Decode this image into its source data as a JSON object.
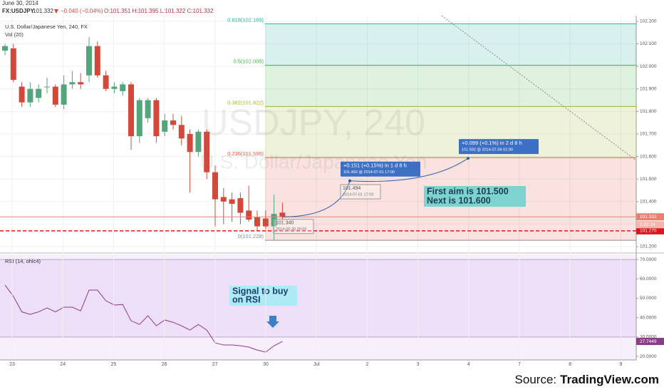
{
  "header": {
    "date": "June 30, 2014",
    "symbol": "FX:USDJPY",
    "last": "101.332",
    "change": "−0.040 (−0.04%)",
    "ohlc": "O:101.351 H:101.395 L:101.322 C:101.332"
  },
  "chart_data": [
    {
      "type": "candlestick",
      "title": "U.S. Dollar/Japanese Yen, 240, FX",
      "subtitle": "Vol (20)",
      "watermark": "USDJPY, 240",
      "watermark_subtitle": "U.S. Dollar/Japanese Yen",
      "xticks": [
        "23",
        "24",
        "25",
        "26",
        "27",
        "30",
        "Jul",
        "2",
        "3",
        "4",
        "7",
        "8",
        "9"
      ],
      "open": [
        102.07,
        102.08,
        101.91,
        101.84,
        101.86,
        101.91,
        101.91,
        101.83,
        101.92,
        101.93,
        101.96,
        102.09,
        101.96,
        101.9,
        101.89,
        101.92,
        101.69,
        101.77,
        101.85,
        101.71,
        101.76,
        101.74,
        101.7,
        101.62,
        101.71,
        101.53,
        101.42,
        101.41,
        101.415,
        101.36,
        101.33,
        101.325,
        101.29,
        101.351
      ],
      "high": [
        102.1,
        102.1,
        101.93,
        101.93,
        101.92,
        101.95,
        101.92,
        101.96,
        101.98,
        101.97,
        102.13,
        102.11,
        101.98,
        101.93,
        101.93,
        101.93,
        101.86,
        101.86,
        101.86,
        101.79,
        101.79,
        101.78,
        101.72,
        101.72,
        101.72,
        101.56,
        101.46,
        101.44,
        101.44,
        101.47,
        101.36,
        101.36,
        101.43,
        101.395
      ],
      "low": [
        102.05,
        101.93,
        101.82,
        101.82,
        101.84,
        101.88,
        101.82,
        101.81,
        101.9,
        101.9,
        101.93,
        101.95,
        101.89,
        101.88,
        101.87,
        101.63,
        101.66,
        101.75,
        101.66,
        101.69,
        101.72,
        101.65,
        101.44,
        101.6,
        101.5,
        101.29,
        101.3,
        101.31,
        101.3,
        101.31,
        101.27,
        101.28,
        101.23,
        101.322
      ],
      "close": [
        102.09,
        101.94,
        101.84,
        101.9,
        101.9,
        101.91,
        101.83,
        101.92,
        101.93,
        101.92,
        102.09,
        101.96,
        101.9,
        101.91,
        101.92,
        101.69,
        101.85,
        101.85,
        101.69,
        101.76,
        101.74,
        101.68,
        101.62,
        101.71,
        101.53,
        101.41,
        101.4,
        101.39,
        101.35,
        101.32,
        101.29,
        101.29,
        101.345,
        101.332
      ],
      "up_color": "#53a57c",
      "down_color": "#d2493c",
      "ylim": [
        101.181,
        102.225
      ],
      "yticks": [
        {
          "value": 102.2,
          "label": "102.200"
        },
        {
          "value": 102.1,
          "label": "102.100"
        },
        {
          "value": 102.0,
          "label": "102.000"
        },
        {
          "value": 101.9,
          "label": "101.900"
        },
        {
          "value": 101.8,
          "label": "101.800"
        },
        {
          "value": 101.7,
          "label": "101.700"
        },
        {
          "value": 101.6,
          "label": "101.600"
        },
        {
          "value": 101.5,
          "label": "101.500"
        },
        {
          "value": 101.4,
          "label": "101.400"
        },
        {
          "value": 101.3,
          "label": "101.300"
        },
        {
          "value": 101.2,
          "label": "101.200"
        }
      ],
      "fib_levels": [
        {
          "value": 102.189,
          "label": "0.618(102.189)",
          "color": "#2bb3a0"
        },
        {
          "value": 102.005,
          "label": "0.5(102.005)",
          "color": "#4caf50"
        },
        {
          "value": 101.822,
          "label": "0.382(101.822)",
          "color": "#9fb53a"
        },
        {
          "value": 101.595,
          "label": "0.236(101.595)",
          "color": "#e05e4f"
        },
        {
          "value": 101.228,
          "label": "0(101.228)",
          "color": "#8a8a8a"
        }
      ],
      "price_lines": [
        {
          "value": 101.332,
          "label": "101.332",
          "color": "#e8806f",
          "dashed": false
        },
        {
          "value": 101.27,
          "label": "101.270",
          "color": "#e0141e",
          "dashed": true
        }
      ],
      "countdown": "1:32:24",
      "projections": [
        {
          "value": 101.492,
          "text": "+0.151 (+0.15%) in 1 d 8 h",
          "detail": "101.492 @ 2014-07-01 17:00"
        },
        {
          "value": 101.592,
          "text": "+0.099 (+0.1%) in 2 d 8 h",
          "detail": "101.592 @ 2014-07-04 01:00"
        }
      ],
      "price_labels": [
        {
          "value": 101.494,
          "label": "101.494",
          "time": "2014-07-01 17:00"
        },
        {
          "value": 101.34,
          "label": "101.340",
          "time": "2014-06-30 09:00"
        }
      ],
      "note": [
        "First aim is 101.500",
        "Next is 101.600"
      ]
    },
    {
      "type": "line",
      "title": "RSI (14, ohlc4)",
      "values": [
        56.8,
        51,
        43,
        41.7,
        43,
        45,
        43,
        45.4,
        45.4,
        43.5,
        54.2,
        54.2,
        48.7,
        46.5,
        46.8,
        38.4,
        36.5,
        41,
        35.8,
        38.8,
        37.6,
        35.8,
        33.6,
        36.5,
        33.6,
        27,
        25.9,
        25.9,
        25.5,
        24.8,
        23.3,
        22.2,
        25.5,
        27.7449
      ],
      "color": "#8c3b89",
      "ylim": [
        18.2,
        72.6
      ],
      "yticks": [
        {
          "value": 70,
          "label": "70.0000"
        },
        {
          "value": 60,
          "label": "60.0000"
        },
        {
          "value": 50,
          "label": "50.0000"
        },
        {
          "value": 40,
          "label": "40.0000"
        },
        {
          "value": 30,
          "label": "30.0000"
        },
        {
          "value": 20,
          "label": "20.0000"
        }
      ],
      "band": [
        30,
        70
      ],
      "note": [
        "Signal to buy",
        "on RSI"
      ]
    }
  ],
  "source": {
    "label": "Source:",
    "name": "TradingView.com"
  }
}
